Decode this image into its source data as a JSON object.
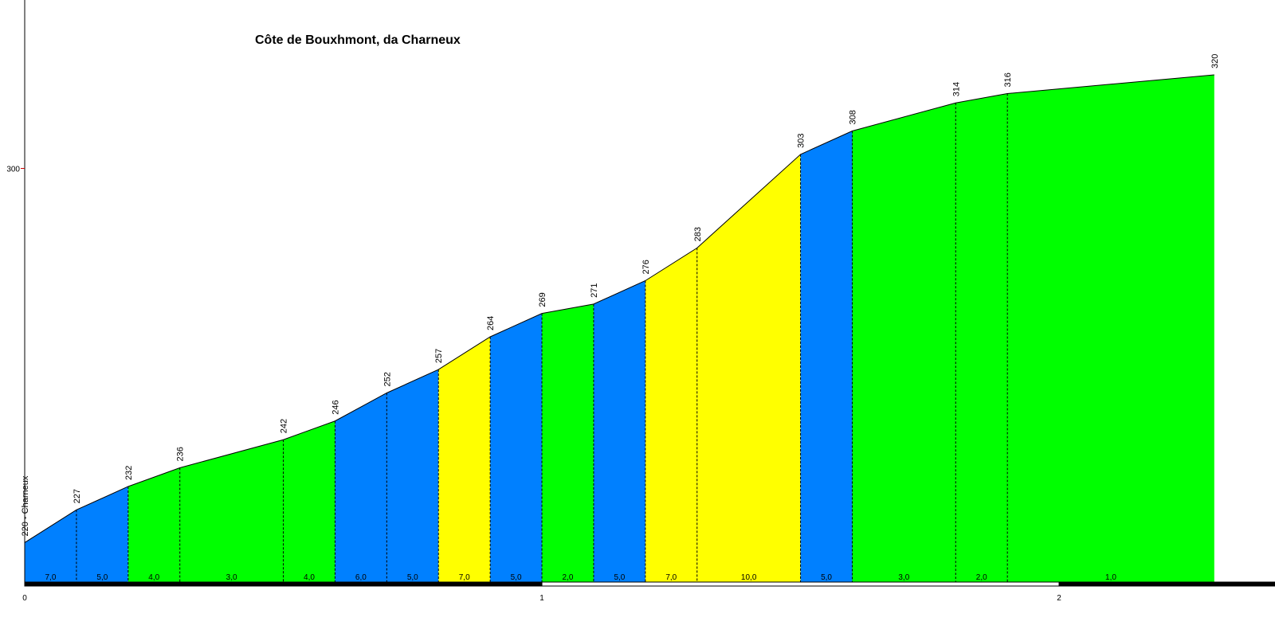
{
  "chart_data": {
    "type": "area",
    "title": "Côte de Bouxhmont, da Charneux",
    "xlabel": "",
    "ylabel": "",
    "x_unit": "km",
    "y_unit": "m",
    "x_ticks": [
      "0",
      "1",
      "2"
    ],
    "y_ticks": [
      "300"
    ],
    "start_label": "220 - Charneux",
    "points": [
      {
        "x": 0.0,
        "y": 220,
        "label": "220 - Charneux"
      },
      {
        "x": 0.1,
        "y": 227,
        "label": "227"
      },
      {
        "x": 0.2,
        "y": 232,
        "label": "232"
      },
      {
        "x": 0.3,
        "y": 236,
        "label": "236"
      },
      {
        "x": 0.5,
        "y": 242,
        "label": "242"
      },
      {
        "x": 0.6,
        "y": 246,
        "label": "246"
      },
      {
        "x": 0.7,
        "y": 252,
        "label": "252"
      },
      {
        "x": 0.8,
        "y": 257,
        "label": "257"
      },
      {
        "x": 0.9,
        "y": 264,
        "label": "264"
      },
      {
        "x": 1.0,
        "y": 269,
        "label": "269"
      },
      {
        "x": 1.1,
        "y": 271,
        "label": "271"
      },
      {
        "x": 1.2,
        "y": 276,
        "label": "276"
      },
      {
        "x": 1.3,
        "y": 283,
        "label": "283"
      },
      {
        "x": 1.5,
        "y": 303,
        "label": "303"
      },
      {
        "x": 1.6,
        "y": 308,
        "label": "308"
      },
      {
        "x": 1.8,
        "y": 314,
        "label": "314"
      },
      {
        "x": 1.9,
        "y": 316,
        "label": "316"
      },
      {
        "x": 2.3,
        "y": 320,
        "label": "320"
      }
    ],
    "segments": [
      {
        "x0": 0.0,
        "x1": 0.1,
        "grade": "7,0",
        "color": "#0080ff"
      },
      {
        "x0": 0.1,
        "x1": 0.2,
        "grade": "5,0",
        "color": "#0080ff"
      },
      {
        "x0": 0.2,
        "x1": 0.3,
        "grade": "4,0",
        "color": "#00ff00"
      },
      {
        "x0": 0.3,
        "x1": 0.5,
        "grade": "3,0",
        "color": "#00ff00"
      },
      {
        "x0": 0.5,
        "x1": 0.6,
        "grade": "4,0",
        "color": "#00ff00"
      },
      {
        "x0": 0.6,
        "x1": 0.7,
        "grade": "6,0",
        "color": "#0080ff"
      },
      {
        "x0": 0.7,
        "x1": 0.8,
        "grade": "5,0",
        "color": "#0080ff"
      },
      {
        "x0": 0.8,
        "x1": 0.9,
        "grade": "7,0",
        "color": "#ffff00"
      },
      {
        "x0": 0.9,
        "x1": 1.0,
        "grade": "5,0",
        "color": "#0080ff"
      },
      {
        "x0": 1.0,
        "x1": 1.1,
        "grade": "2,0",
        "color": "#00ff00"
      },
      {
        "x0": 1.1,
        "x1": 1.2,
        "grade": "5,0",
        "color": "#0080ff"
      },
      {
        "x0": 1.2,
        "x1": 1.3,
        "grade": "7,0",
        "color": "#ffff00"
      },
      {
        "x0": 1.3,
        "x1": 1.5,
        "grade": "10,0",
        "color": "#ffff00"
      },
      {
        "x0": 1.5,
        "x1": 1.6,
        "grade": "5,0",
        "color": "#0080ff"
      },
      {
        "x0": 1.6,
        "x1": 1.8,
        "grade": "3,0",
        "color": "#00ff00"
      },
      {
        "x0": 1.8,
        "x1": 1.9,
        "grade": "2,0",
        "color": "#00ff00"
      },
      {
        "x0": 1.9,
        "x1": 2.3,
        "grade": "1,0",
        "color": "#00ff00"
      }
    ],
    "x_range": [
      0,
      2.4174
    ],
    "y_range": [
      211.4,
      336
    ],
    "colors": {
      "outline": "#000000",
      "axis_tick": "#cc0000"
    }
  }
}
